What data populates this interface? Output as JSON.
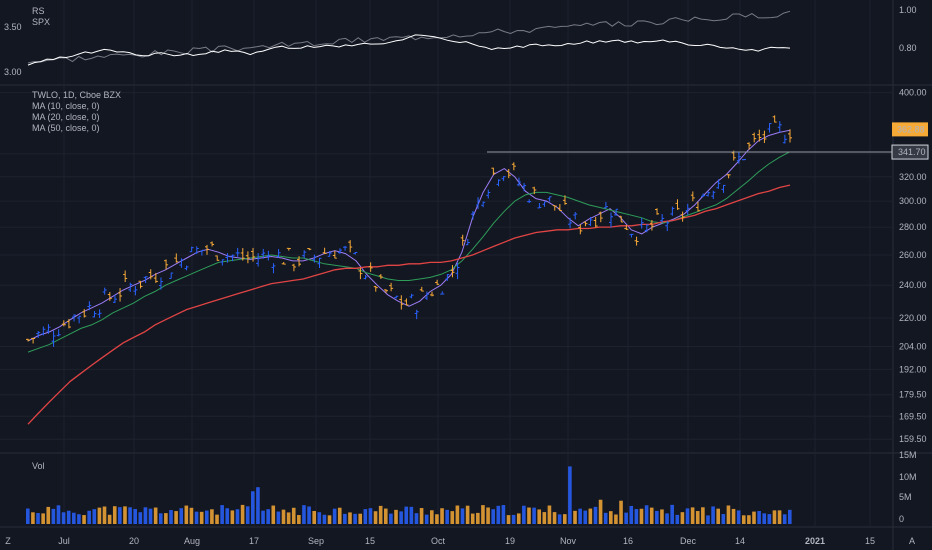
{
  "colors": {
    "background": "#131722",
    "up": "#2962ff",
    "down": "#f7a936",
    "ma10": "#9c7cf4",
    "ma20": "#2e9d5a",
    "ma50": "#e04444",
    "rs_line": "#ffffff",
    "spx_line": "#787b86",
    "price_tag_last": "#f7a936",
    "price_tag_level": "#d1d4dc"
  },
  "rs_pane": {
    "labels": [
      "RS",
      "SPX"
    ],
    "left_ticks": [
      "3.50",
      "3.00"
    ],
    "right_ticks": [
      "1.00",
      "0.80"
    ]
  },
  "price_pane": {
    "legend": [
      "TWLO, 1D, Cboe BZX",
      "MA (10, close, 0)",
      "MA (20, close, 0)",
      "MA (50, close, 0)"
    ],
    "y_ticks": [
      "400.00",
      "340.00",
      "320.00",
      "300.00",
      "280.00",
      "260.00",
      "240.00",
      "220.00",
      "204.00",
      "192.00",
      "179.50",
      "169.50",
      "159.50"
    ],
    "last_price": "362.88",
    "level_price": "341.70"
  },
  "volume_pane": {
    "label": "Vol",
    "y_ticks": [
      "15M",
      "10M",
      "5M",
      "0"
    ]
  },
  "x_axis": {
    "ticks": [
      "Jul",
      "20",
      "Aug",
      "17",
      "Sep",
      "15",
      "Oct",
      "19",
      "Nov",
      "16",
      "Dec",
      "14",
      "2021",
      "15"
    ]
  },
  "corner_icons": {
    "left": "Z",
    "right": "A"
  },
  "chart_data": {
    "type": "bar",
    "title": "TWLO, 1D, Cboe BZX",
    "series": [
      {
        "name": "MA (10, close, 0)",
        "values": [
          207,
          210,
          212,
          215,
          219,
          223,
          226,
          229,
          233,
          237,
          240,
          243,
          247,
          250,
          254,
          258,
          262,
          264,
          262,
          259,
          258,
          257,
          258,
          259,
          258,
          256,
          256,
          258,
          261,
          263,
          261,
          256,
          247,
          240,
          234,
          230,
          227,
          230,
          236,
          240,
          247,
          262,
          287,
          307,
          322,
          327,
          320,
          308,
          302,
          300,
          295,
          287,
          281,
          286,
          290,
          294,
          287,
          278,
          275,
          280,
          283,
          286,
          290,
          297,
          306,
          315,
          322,
          332,
          343,
          352,
          357,
          360,
          362
        ]
      },
      {
        "name": "MA (20, close, 0)",
        "values": [
          201,
          203,
          205,
          208,
          211,
          214,
          216,
          219,
          223,
          226,
          229,
          233,
          236,
          240,
          243,
          246,
          249,
          252,
          255,
          256,
          257,
          258,
          259,
          260,
          259,
          258,
          258,
          256,
          254,
          253,
          252,
          251,
          248,
          246,
          244,
          243,
          243,
          244,
          245,
          247,
          250,
          256,
          264,
          273,
          283,
          292,
          300,
          305,
          307,
          307,
          305,
          303,
          300,
          297,
          295,
          293,
          291,
          289,
          287,
          284,
          283,
          285,
          288,
          291,
          294,
          297,
          302,
          309,
          316,
          324,
          331,
          337,
          342
        ]
      },
      {
        "name": "MA (50, close, 0)",
        "values": [
          166,
          171,
          176,
          181,
          186,
          190,
          194,
          198,
          202,
          206,
          209,
          212,
          216,
          219,
          222,
          225,
          227,
          229,
          231,
          233,
          235,
          237,
          239,
          241,
          242,
          243,
          244,
          246,
          248,
          250,
          251,
          251,
          252,
          252,
          253,
          253,
          254,
          254,
          255,
          255,
          256,
          258,
          260,
          263,
          266,
          269,
          272,
          274,
          276,
          277,
          278,
          278,
          279,
          279,
          280,
          280,
          281,
          281,
          282,
          282,
          284,
          285,
          287,
          289,
          292,
          294,
          297,
          300,
          303,
          306,
          308,
          311,
          313
        ]
      }
    ],
    "ylim": [
      155,
      405
    ],
    "y_scale": "log",
    "volume_ylim": [
      0,
      15
    ],
    "grid": true
  }
}
